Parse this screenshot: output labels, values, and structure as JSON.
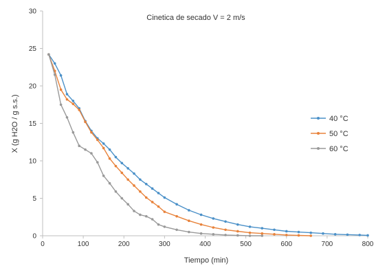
{
  "chart_data": {
    "type": "line",
    "title": "Cinetica de secado V = 2 m/s",
    "xlabel": "Tiempo (min)",
    "ylabel": "X (g H2O / g s.s.)",
    "xlim": [
      0,
      800
    ],
    "ylim": [
      0,
      30
    ],
    "xticks": [
      0,
      100,
      200,
      300,
      400,
      500,
      600,
      700,
      800
    ],
    "yticks": [
      0,
      5,
      10,
      15,
      20,
      25,
      30
    ],
    "grid": false,
    "legend_position": "right",
    "series": [
      {
        "name": "40 °C",
        "color": "#4a90c8",
        "x": [
          15,
          30,
          45,
          60,
          75,
          90,
          105,
          120,
          135,
          150,
          165,
          180,
          195,
          210,
          225,
          240,
          255,
          270,
          285,
          300,
          330,
          360,
          390,
          420,
          450,
          480,
          510,
          540,
          570,
          600,
          630,
          660,
          690,
          720,
          750,
          780,
          800
        ],
        "y": [
          24.2,
          23.0,
          21.4,
          18.9,
          18.0,
          17.0,
          15.3,
          14.0,
          13.0,
          12.3,
          11.5,
          10.5,
          9.7,
          9.0,
          8.3,
          7.5,
          6.9,
          6.3,
          5.7,
          5.1,
          4.2,
          3.4,
          2.8,
          2.3,
          1.9,
          1.5,
          1.2,
          1.0,
          0.8,
          0.6,
          0.5,
          0.4,
          0.3,
          0.2,
          0.15,
          0.1,
          0.05
        ]
      },
      {
        "name": "50 °C",
        "color": "#e8823a",
        "x": [
          15,
          30,
          45,
          60,
          75,
          90,
          105,
          120,
          135,
          150,
          165,
          180,
          195,
          210,
          225,
          240,
          255,
          270,
          285,
          300,
          330,
          360,
          390,
          420,
          450,
          480,
          510,
          540,
          570,
          600,
          630,
          660
        ],
        "y": [
          24.2,
          22.0,
          19.5,
          18.2,
          17.6,
          16.8,
          15.2,
          13.8,
          12.8,
          11.7,
          10.3,
          9.3,
          8.4,
          7.5,
          6.7,
          5.9,
          5.1,
          4.5,
          3.9,
          3.2,
          2.6,
          2.0,
          1.5,
          1.1,
          0.8,
          0.6,
          0.4,
          0.3,
          0.2,
          0.1,
          0.05,
          0.0
        ]
      },
      {
        "name": "60 °C",
        "color": "#999999",
        "x": [
          15,
          30,
          45,
          60,
          75,
          90,
          105,
          120,
          135,
          150,
          165,
          180,
          195,
          210,
          225,
          240,
          255,
          270,
          285,
          300,
          330,
          360,
          390,
          420,
          450,
          480,
          510,
          540
        ],
        "y": [
          24.2,
          21.5,
          17.5,
          15.8,
          13.8,
          12.0,
          11.5,
          11.0,
          9.8,
          8.0,
          7.0,
          5.9,
          5.0,
          4.2,
          3.3,
          2.8,
          2.6,
          2.2,
          1.5,
          1.2,
          0.8,
          0.5,
          0.3,
          0.2,
          0.1,
          0.05,
          0.0,
          0.0
        ]
      }
    ]
  }
}
